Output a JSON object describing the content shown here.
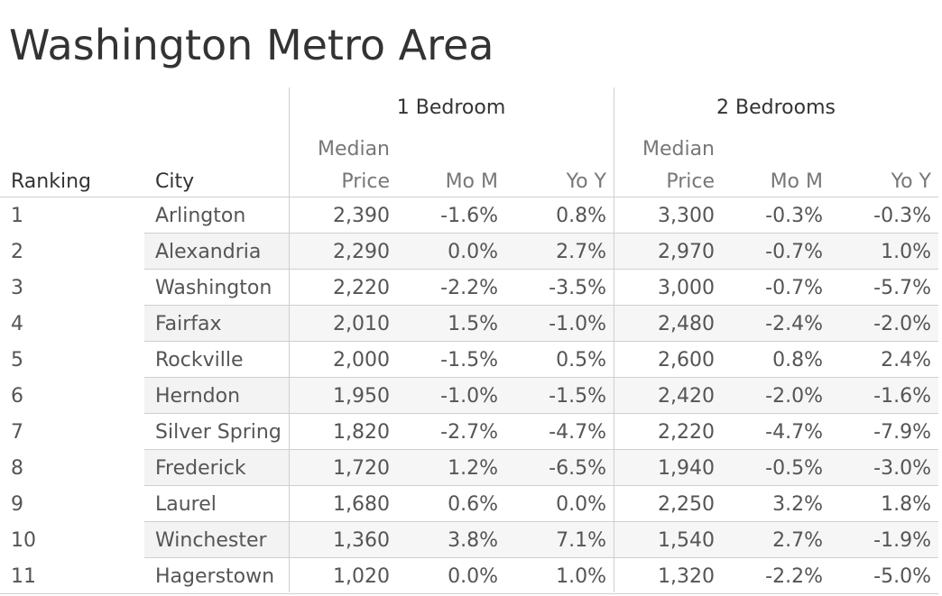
{
  "chart_data": {
    "type": "table",
    "title": "Washington Metro Area",
    "group_headers": [
      "1 Bedroom",
      "2 Bedrooms"
    ],
    "columns": {
      "ranking": "Ranking",
      "city": "City",
      "median_line1": "Median",
      "median_line2": "Price",
      "mom": "Mo M",
      "yoy": "Yo Y"
    },
    "rows": [
      {
        "rank": "1",
        "city": "Arlington",
        "b1_price": "2,390",
        "b1_mom": "-1.6%",
        "b1_yoy": "0.8%",
        "b2_price": "3,300",
        "b2_mom": "-0.3%",
        "b2_yoy": "-0.3%"
      },
      {
        "rank": "2",
        "city": "Alexandria",
        "b1_price": "2,290",
        "b1_mom": "0.0%",
        "b1_yoy": "2.7%",
        "b2_price": "2,970",
        "b2_mom": "-0.7%",
        "b2_yoy": "1.0%"
      },
      {
        "rank": "3",
        "city": "Washington",
        "b1_price": "2,220",
        "b1_mom": "-2.2%",
        "b1_yoy": "-3.5%",
        "b2_price": "3,000",
        "b2_mom": "-0.7%",
        "b2_yoy": "-5.7%"
      },
      {
        "rank": "4",
        "city": "Fairfax",
        "b1_price": "2,010",
        "b1_mom": "1.5%",
        "b1_yoy": "-1.0%",
        "b2_price": "2,480",
        "b2_mom": "-2.4%",
        "b2_yoy": "-2.0%"
      },
      {
        "rank": "5",
        "city": "Rockville",
        "b1_price": "2,000",
        "b1_mom": "-1.5%",
        "b1_yoy": "0.5%",
        "b2_price": "2,600",
        "b2_mom": "0.8%",
        "b2_yoy": "2.4%"
      },
      {
        "rank": "6",
        "city": "Herndon",
        "b1_price": "1,950",
        "b1_mom": "-1.0%",
        "b1_yoy": "-1.5%",
        "b2_price": "2,420",
        "b2_mom": "-2.0%",
        "b2_yoy": "-1.6%"
      },
      {
        "rank": "7",
        "city": "Silver Spring",
        "b1_price": "1,820",
        "b1_mom": "-2.7%",
        "b1_yoy": "-4.7%",
        "b2_price": "2,220",
        "b2_mom": "-4.7%",
        "b2_yoy": "-7.9%"
      },
      {
        "rank": "8",
        "city": "Frederick",
        "b1_price": "1,720",
        "b1_mom": "1.2%",
        "b1_yoy": "-6.5%",
        "b2_price": "1,940",
        "b2_mom": "-0.5%",
        "b2_yoy": "-3.0%"
      },
      {
        "rank": "9",
        "city": "Laurel",
        "b1_price": "1,680",
        "b1_mom": "0.6%",
        "b1_yoy": "0.0%",
        "b2_price": "2,250",
        "b2_mom": "3.2%",
        "b2_yoy": "1.8%"
      },
      {
        "rank": "10",
        "city": "Winchester",
        "b1_price": "1,360",
        "b1_mom": "3.8%",
        "b1_yoy": "7.1%",
        "b2_price": "1,540",
        "b2_mom": "2.7%",
        "b2_yoy": "-1.9%"
      },
      {
        "rank": "11",
        "city": "Hagerstown",
        "b1_price": "1,020",
        "b1_mom": "0.0%",
        "b1_yoy": "1.0%",
        "b2_price": "1,320",
        "b2_mom": "-2.2%",
        "b2_yoy": "-5.0%"
      }
    ]
  }
}
